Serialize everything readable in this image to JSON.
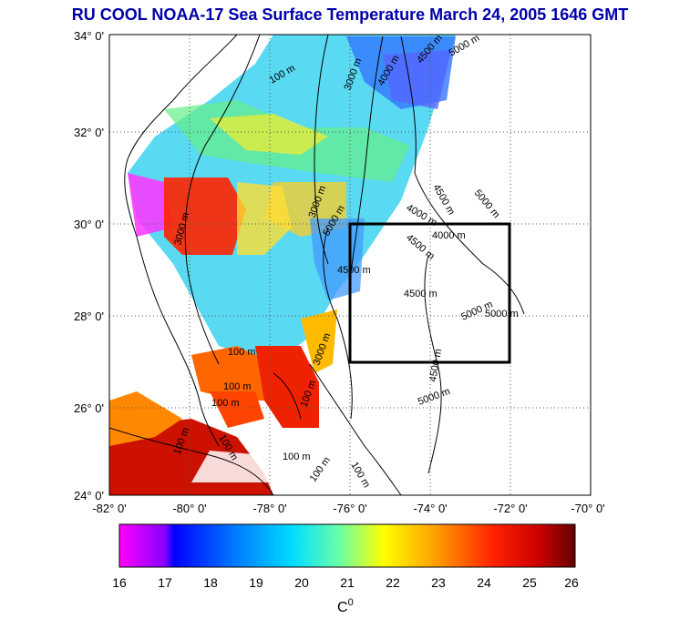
{
  "title": "RU COOL  NOAA-17 Sea Surface Temperature March 24, 2005 1646 GMT",
  "map": {
    "lon_ticks": [
      "-82° 0'",
      "-80° 0'",
      "-78° 0'",
      "-76° 0'",
      "-74° 0'",
      "-72° 0'",
      "-70° 0'"
    ],
    "lat_ticks": [
      "34° 0'",
      "32° 0'",
      "30° 0'",
      "28° 0'",
      "26° 0'",
      "24° 0'"
    ],
    "contour_labels": [
      "100 m",
      "3000 m",
      "3000 m",
      "4000 m",
      "4500 m",
      "5000 m",
      "3000 m",
      "100 m",
      "5000 m",
      "4500 m",
      "4000 m",
      "4000 m",
      "4500 m",
      "5000 m",
      "4500 m",
      "4500 m",
      "5000 m",
      "5000 m",
      "4500 m",
      "5000 m",
      "100 m",
      "100 m",
      "3000 m",
      "100 m",
      "100 m",
      "100 m",
      "100 m",
      "100 m",
      "100 m"
    ],
    "box_color": "#000000"
  },
  "colorbar": {
    "ticks": [
      "16",
      "17",
      "18",
      "19",
      "20",
      "21",
      "22",
      "23",
      "24",
      "25",
      "26"
    ],
    "unit_label": "C",
    "unit_superscript": "0",
    "colors": [
      "#ff00ff",
      "#7700ff",
      "#0000ff",
      "#0088ff",
      "#00eeff",
      "#88ff88",
      "#ffff00",
      "#ff9900",
      "#ff2200",
      "#cc0000",
      "#660000"
    ]
  }
}
